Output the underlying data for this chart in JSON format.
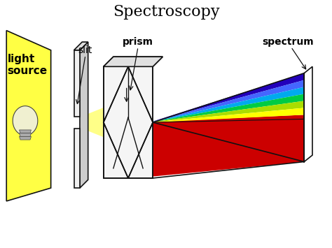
{
  "title": "Spectroscopy",
  "title_fontsize": 16,
  "title_color": "#000000",
  "background_color": "#ffffff",
  "labels": {
    "light_source": "light\nsource",
    "slit": "slit",
    "prism": "prism",
    "spectrum": "spectrum"
  },
  "label_fontsize": 10,
  "label_color": "#000000",
  "yellow_fill": "#FFFF44",
  "yellow_beam_fill": "#FFFF88",
  "red_fill": "#CC0000",
  "spectrum_colors_top": [
    "#0000CC",
    "#4444FF",
    "#00AAFF",
    "#00BB00",
    "#CCDD00",
    "#FFFF00"
  ],
  "outline_color": "#111111",
  "prism_face_color": "#F5F5F5",
  "prism_top_color": "#E0E0E0"
}
